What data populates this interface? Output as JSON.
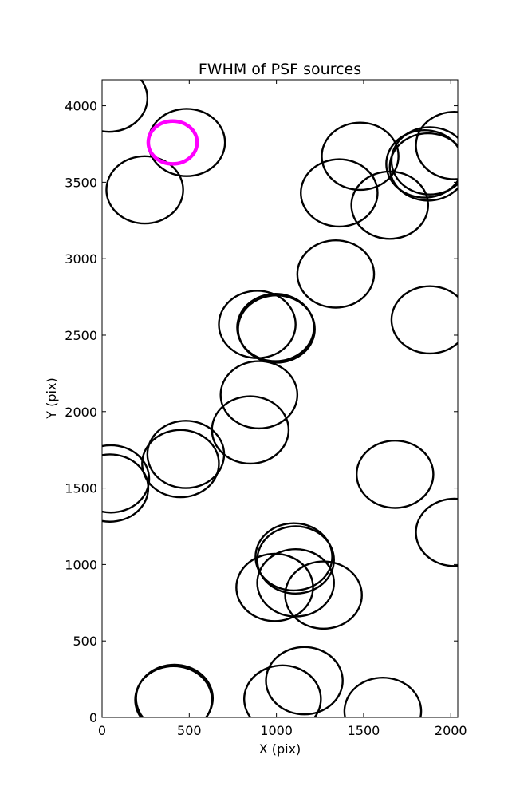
{
  "chart_data": {
    "type": "scatter",
    "title": "FWHM of PSF sources",
    "xlabel": "X (pix)",
    "ylabel": "Y (pix)",
    "xlim": [
      0,
      2040
    ],
    "ylim": [
      0,
      4170
    ],
    "xticks": [
      0,
      500,
      1000,
      1500,
      2000
    ],
    "yticks": [
      0,
      500,
      1000,
      1500,
      2000,
      2500,
      3000,
      3500,
      4000
    ],
    "grid": false,
    "marker_color": "#000000",
    "highlight_color": "#ff00ff",
    "sources": [
      {
        "x": 40,
        "y": 4050,
        "r": 220
      },
      {
        "x": 485,
        "y": 3760,
        "r": 220
      },
      {
        "x": 245,
        "y": 3450,
        "r": 220
      },
      {
        "x": 1480,
        "y": 3670,
        "r": 220
      },
      {
        "x": 1360,
        "y": 3430,
        "r": 220
      },
      {
        "x": 1650,
        "y": 3350,
        "r": 220
      },
      {
        "x": 1850,
        "y": 3620,
        "r": 220
      },
      {
        "x": 1870,
        "y": 3600,
        "r": 220
      },
      {
        "x": 1880,
        "y": 3640,
        "r": 220
      },
      {
        "x": 2020,
        "y": 3740,
        "r": 220
      },
      {
        "x": 1340,
        "y": 2900,
        "r": 220
      },
      {
        "x": 890,
        "y": 2570,
        "r": 220
      },
      {
        "x": 995,
        "y": 2550,
        "r": 220
      },
      {
        "x": 1000,
        "y": 2540,
        "r": 220
      },
      {
        "x": 1880,
        "y": 2600,
        "r": 220
      },
      {
        "x": 900,
        "y": 2110,
        "r": 220
      },
      {
        "x": 850,
        "y": 1880,
        "r": 220
      },
      {
        "x": 480,
        "y": 1720,
        "r": 220
      },
      {
        "x": 450,
        "y": 1660,
        "r": 220
      },
      {
        "x": 50,
        "y": 1560,
        "r": 220
      },
      {
        "x": 45,
        "y": 1500,
        "r": 220
      },
      {
        "x": 1680,
        "y": 1590,
        "r": 220
      },
      {
        "x": 2020,
        "y": 1210,
        "r": 220
      },
      {
        "x": 1110,
        "y": 1030,
        "r": 220
      },
      {
        "x": 1100,
        "y": 1050,
        "r": 220
      },
      {
        "x": 1110,
        "y": 880,
        "r": 220
      },
      {
        "x": 990,
        "y": 850,
        "r": 220
      },
      {
        "x": 1270,
        "y": 800,
        "r": 220
      },
      {
        "x": 1160,
        "y": 240,
        "r": 220
      },
      {
        "x": 1035,
        "y": 120,
        "r": 220
      },
      {
        "x": 410,
        "y": 115,
        "r": 220
      },
      {
        "x": 415,
        "y": 125,
        "r": 220
      },
      {
        "x": 1610,
        "y": 40,
        "r": 220
      }
    ],
    "highlight": {
      "x": 405,
      "y": 3760,
      "r": 140
    }
  }
}
